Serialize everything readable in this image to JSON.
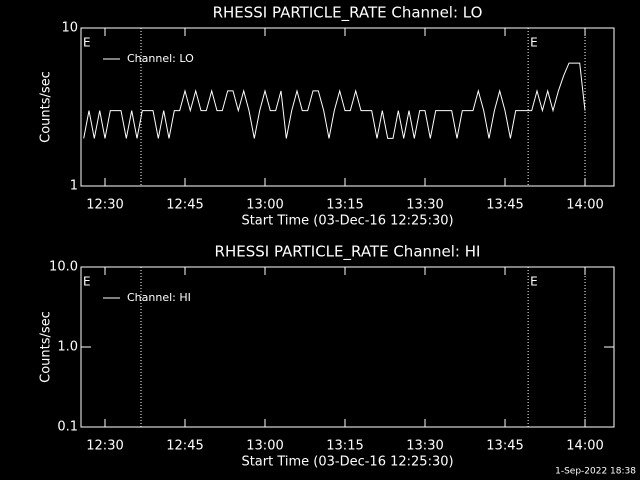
{
  "chart_data": [
    {
      "type": "line",
      "title": "RHESSI PARTICLE_RATE Channel: LO",
      "ylabel": "Counts/sec",
      "xlabel": "Start Time (03-Dec-16 12:25:30)",
      "log_y": true,
      "legend": "upper left",
      "xlim": [
        "12:25:30",
        "14:05:26"
      ],
      "xticks": [
        "12:30",
        "12:45",
        "13:00",
        "13:15",
        "13:30",
        "13:45",
        "14:00"
      ],
      "ylim": [
        1,
        10
      ],
      "yticks": [
        1,
        10
      ],
      "vlines": [
        "12:36:45",
        "13:49:20",
        "14:00:00"
      ],
      "annotations": [
        {
          "x": "12:25:30",
          "text": "E"
        },
        {
          "x": "13:49:20",
          "text": "E"
        }
      ],
      "x": [
        "12:26",
        "12:27",
        "12:28",
        "12:29",
        "12:30",
        "12:31",
        "12:32",
        "12:33",
        "12:34",
        "12:35",
        "12:36",
        "12:37",
        "12:38",
        "12:39",
        "12:40",
        "12:41",
        "12:42",
        "12:43",
        "12:44",
        "12:45",
        "12:46",
        "12:47",
        "12:48",
        "12:49",
        "12:50",
        "12:51",
        "12:52",
        "12:53",
        "12:54",
        "12:55",
        "12:56",
        "12:57",
        "12:58",
        "12:59",
        "13:00",
        "13:01",
        "13:02",
        "13:03",
        "13:04",
        "13:05",
        "13:06",
        "13:07",
        "13:08",
        "13:09",
        "13:10",
        "13:11",
        "13:12",
        "13:13",
        "13:14",
        "13:15",
        "13:16",
        "13:17",
        "13:18",
        "13:19",
        "13:20",
        "13:21",
        "13:22",
        "13:23",
        "13:24",
        "13:25",
        "13:26",
        "13:27",
        "13:28",
        "13:29",
        "13:30",
        "13:31",
        "13:32",
        "13:33",
        "13:34",
        "13:35",
        "13:36",
        "13:37",
        "13:38",
        "13:39",
        "13:40",
        "13:41",
        "13:42",
        "13:43",
        "13:44",
        "13:45",
        "13:46",
        "13:47",
        "13:48",
        "13:49",
        "13:50",
        "13:51",
        "13:52",
        "13:53",
        "13:54",
        "13:55",
        "13:56",
        "13:57",
        "13:58",
        "13:59",
        "14:00"
      ],
      "series": [
        {
          "name": "Channel: LO",
          "color": "#ffffff",
          "values": [
            2,
            3,
            2,
            3,
            2,
            3,
            3,
            3,
            2,
            3,
            2,
            3,
            3,
            3,
            2,
            3,
            2,
            3,
            3,
            4,
            3,
            4,
            3,
            3,
            4,
            3,
            3,
            4,
            4,
            3,
            4,
            3,
            2,
            3,
            4,
            3,
            3,
            4,
            2,
            3,
            4,
            3,
            3,
            4,
            4,
            3,
            2,
            3,
            4,
            3,
            3,
            4,
            3,
            3,
            3,
            2,
            3,
            2,
            2,
            3,
            2,
            3,
            2,
            3,
            3,
            2,
            3,
            3,
            3,
            3,
            2,
            3,
            3,
            3,
            4,
            3,
            2,
            3,
            4,
            3,
            2,
            3,
            3,
            3,
            3,
            4,
            3,
            4,
            3,
            4,
            5,
            6,
            6,
            6,
            3
          ]
        }
      ]
    },
    {
      "type": "line",
      "title": "RHESSI PARTICLE_RATE Channel: HI",
      "ylabel": "Counts/sec",
      "xlabel": "Start Time (03-Dec-16 12:25:30)",
      "log_y": true,
      "legend": "upper left",
      "xlim": [
        "12:25:30",
        "14:05:26"
      ],
      "xticks": [
        "12:30",
        "12:45",
        "13:00",
        "13:15",
        "13:30",
        "13:45",
        "14:00"
      ],
      "ylim": [
        0.1,
        10
      ],
      "yticks": [
        0.1,
        {
          "value": 1,
          "label": "1.0"
        },
        {
          "value": 10,
          "label": "10.0"
        }
      ],
      "vlines": [
        "12:36:45",
        "13:49:20",
        "14:00:00"
      ],
      "annotations": [
        {
          "x": "12:25:30",
          "text": "E"
        },
        {
          "x": "13:49:20",
          "text": "E"
        }
      ],
      "x": [],
      "series": [
        {
          "name": "Channel: HI",
          "color": "#ffffff",
          "values": []
        }
      ]
    }
  ],
  "footer": "1-Sep-2022 18:38"
}
